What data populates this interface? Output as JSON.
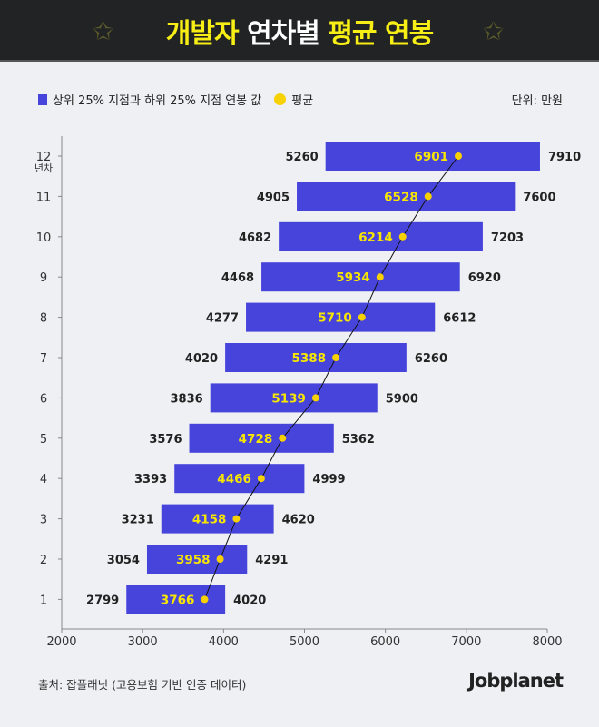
{
  "header": {
    "title_part1": "개발자",
    "title_part2": "연차별",
    "title_part3": "평균 연봉",
    "star_icon": "star-icon"
  },
  "legend": {
    "range_label": "상위 25% 지점과 하위 25% 지점 연봉 값",
    "mean_label": "평균",
    "unit": "단위: 만원"
  },
  "colors": {
    "bar": "#4744dc",
    "mean_dot": "#f7d100",
    "mean_text": "#f7e600",
    "header_bg": "#222325"
  },
  "chart_data": {
    "type": "bar",
    "orientation": "horizontal-range",
    "categories": [
      "1",
      "2",
      "3",
      "4",
      "5",
      "6",
      "7",
      "8",
      "9",
      "10",
      "11",
      "12"
    ],
    "y_unit_label": "년차",
    "series": [
      {
        "name": "하위 25%",
        "values": [
          2799,
          3054,
          3231,
          3393,
          3576,
          3836,
          4020,
          4277,
          4468,
          4682,
          4905,
          5260
        ]
      },
      {
        "name": "상위 25%",
        "values": [
          4020,
          4291,
          4620,
          4999,
          5362,
          5900,
          6260,
          6612,
          6920,
          7203,
          7600,
          7910
        ]
      },
      {
        "name": "평균",
        "values": [
          3766,
          3958,
          4158,
          4466,
          4728,
          5139,
          5388,
          5710,
          5934,
          6214,
          6528,
          6901
        ]
      }
    ],
    "xlim": [
      2000,
      8000
    ],
    "xticks": [
      "2000",
      "3000",
      "4000",
      "5000",
      "6000",
      "7000",
      "8000"
    ],
    "grid": false
  },
  "footer": {
    "source": "출처: 잡플래닛 (고용보험 기반 인증 데이터)",
    "logo": "Jobplanet"
  }
}
